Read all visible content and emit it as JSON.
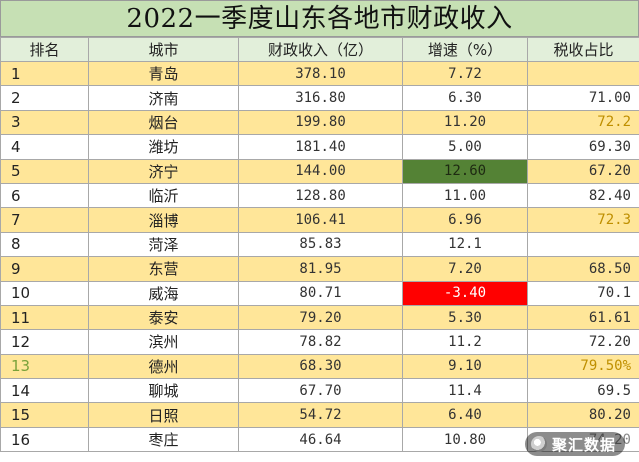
{
  "title": "2022一季度山东各地市财政收入",
  "headers": [
    "排名",
    "城市",
    "财政收入（亿）",
    "增速（%）",
    "税收占比"
  ],
  "rows": [
    {
      "rank": "1",
      "city": "青岛",
      "revenue": "378.10",
      "growth": "7.72",
      "tax": ""
    },
    {
      "rank": "2",
      "city": "济南",
      "revenue": "316.80",
      "growth": "6.30",
      "tax": "71.00"
    },
    {
      "rank": "3",
      "city": "烟台",
      "revenue": "199.80",
      "growth": "11.20",
      "tax": "72.2"
    },
    {
      "rank": "4",
      "city": "潍坊",
      "revenue": "181.40",
      "growth": "5.00",
      "tax": "69.30"
    },
    {
      "rank": "5",
      "city": "济宁",
      "revenue": "144.00",
      "growth": "12.60",
      "tax": "67.20"
    },
    {
      "rank": "6",
      "city": "临沂",
      "revenue": "128.80",
      "growth": "11.00",
      "tax": "82.40"
    },
    {
      "rank": "7",
      "city": "淄博",
      "revenue": "106.41",
      "growth": "6.96",
      "tax": "72.3"
    },
    {
      "rank": "8",
      "city": "菏泽",
      "revenue": "85.83",
      "growth": "12.1",
      "tax": ""
    },
    {
      "rank": "9",
      "city": "东营",
      "revenue": "81.95",
      "growth": "7.20",
      "tax": "68.50"
    },
    {
      "rank": "10",
      "city": "威海",
      "revenue": "80.71",
      "growth": "-3.40",
      "tax": "70.1"
    },
    {
      "rank": "11",
      "city": "泰安",
      "revenue": "79.20",
      "growth": "5.30",
      "tax": "61.61"
    },
    {
      "rank": "12",
      "city": "滨州",
      "revenue": "78.82",
      "growth": "11.2",
      "tax": "72.20"
    },
    {
      "rank": "13",
      "city": "德州",
      "revenue": "68.30",
      "growth": "9.10",
      "tax": "79.50%"
    },
    {
      "rank": "14",
      "city": "聊城",
      "revenue": "67.70",
      "growth": "11.4",
      "tax": "69.5"
    },
    {
      "rank": "15",
      "city": "日照",
      "revenue": "54.72",
      "growth": "6.40",
      "tax": "80.20"
    },
    {
      "rank": "16",
      "city": "枣庄",
      "revenue": "46.64",
      "growth": "10.80",
      "tax": "74.20"
    }
  ],
  "highlight_colors": {
    "row_odd": "#ffe699",
    "row_even": "#ffffff",
    "header": "#e2efda",
    "title": "#c6e0b4",
    "max_growth": "#548235",
    "negative_growth": "#ff0000"
  },
  "watermark": {
    "icon": "brand-logo-icon",
    "text": "聚汇数据"
  }
}
